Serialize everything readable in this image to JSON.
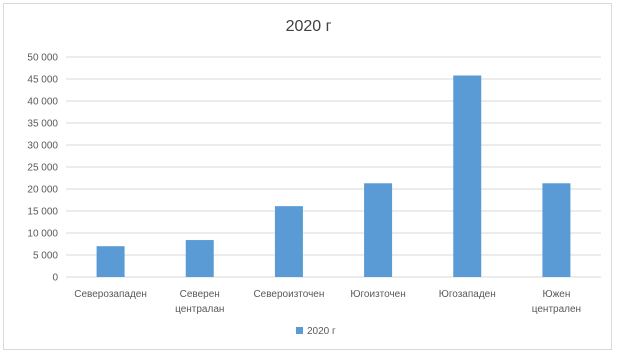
{
  "chart_data": {
    "type": "bar",
    "title": "2020 г",
    "categories": [
      [
        "Северозападен"
      ],
      [
        "Северен",
        "централан"
      ],
      [
        "Североизточен"
      ],
      [
        "Югоизточен"
      ],
      [
        "Югозападен"
      ],
      [
        "Южен",
        "централен"
      ]
    ],
    "series": [
      {
        "name": "2020 г",
        "values": [
          7000,
          8400,
          16100,
          21300,
          45800,
          21300
        ]
      }
    ],
    "ylim": [
      0,
      50000
    ],
    "yticks": [
      "0",
      "5 000",
      "10 000",
      "15 000",
      "20 000",
      "25 000",
      "30 000",
      "35 000",
      "40 000",
      "45 000",
      "50 000"
    ],
    "grid": true,
    "legend": "bottom",
    "colors": {
      "bar": "#5b9bd5",
      "grid": "#d9d9d9",
      "text": "#595959"
    }
  }
}
